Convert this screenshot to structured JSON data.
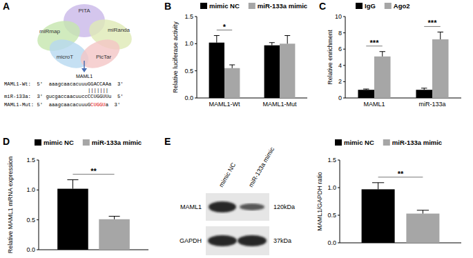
{
  "panel_labels": [
    "A",
    "B",
    "C",
    "D",
    "E"
  ],
  "diagram": {
    "databases": [
      "PITA",
      "miRmap",
      "miRanda",
      "microT",
      "PicTar"
    ],
    "target": "MAML1",
    "alignment": [
      {
        "segments": [
          {
            "text": "MAML1-Wt:  5'  aaagcaacacuuuGGACCAAa  3'"
          }
        ]
      },
      {
        "segments": [
          {
            "text": "|||||||"
          }
        ]
      },
      {
        "segments": [
          {
            "text": "miR-133a:  3' gucgaccaacuuccCCUGGUUu  5'"
          }
        ]
      },
      {
        "segments": [
          {
            "text": "MAML1-Mut: 5'  aaagcaacacuuuG"
          },
          {
            "text": "CUGGU",
            "color": "#e00000"
          },
          {
            "text": "a  3'"
          }
        ]
      }
    ]
  },
  "blot": {
    "lanes": [
      "mimic NC",
      "miR-133a mimic"
    ],
    "rows": [
      {
        "name": "MAML1",
        "size": "120kDa"
      },
      {
        "name": "GAPDH",
        "size": "37kDa"
      }
    ]
  },
  "chart_data": [
    {
      "type": "bar",
      "ylabel": "Relative luciferase activity",
      "categories": [
        "MAML1-Wt",
        "MAML1-Mut"
      ],
      "series": [
        {
          "name": "mimic NC",
          "color": "#000000",
          "values": [
            1.02,
            0.97
          ],
          "errors": [
            0.13,
            0.05
          ]
        },
        {
          "name": "miR-133a mimic",
          "color": "#a6a6a6",
          "values": [
            0.55,
            1.0
          ],
          "errors": [
            0.06,
            0.15
          ]
        }
      ],
      "ylim": [
        0,
        1.5
      ],
      "yticks": [
        {
          "value": 0,
          "label": "0.0"
        },
        {
          "value": 0.5,
          "label": "0.5"
        },
        {
          "value": 1,
          "label": "1.0"
        },
        {
          "value": 1.5,
          "label": "1.5"
        }
      ],
      "annotations": [
        "*",
        null
      ]
    },
    {
      "type": "bar",
      "ylabel": "Relative enrichment",
      "categories": [
        "MAML1",
        "miR-133a"
      ],
      "series": [
        {
          "name": "IgG",
          "color": "#000000",
          "values": [
            1.0,
            1.0
          ],
          "errors": [
            0.1,
            0.2
          ]
        },
        {
          "name": "Ago2",
          "color": "#a6a6a6",
          "values": [
            5.1,
            7.2
          ],
          "errors": [
            0.6,
            0.9
          ]
        }
      ],
      "ylim": [
        0,
        10
      ],
      "yticks": [
        0,
        2,
        4,
        6,
        8,
        10
      ],
      "annotations": [
        "***",
        "***"
      ]
    },
    {
      "type": "bar",
      "ylabel": "Relative MAML1 mRNA expression",
      "categories": [
        null
      ],
      "tick_labels": "y",
      "series": [
        {
          "name": "mimic NC",
          "color": "#000000",
          "values": [
            1.02
          ],
          "errors": [
            0.15
          ]
        },
        {
          "name": "miR-133a mimic",
          "color": "#a6a6a6",
          "values": [
            0.51
          ],
          "errors": [
            0.05
          ]
        }
      ],
      "ylim": [
        0,
        1.5
      ],
      "yticks": [
        {
          "value": 0,
          "label": "0.0"
        },
        {
          "value": 0.5,
          "label": "0.5"
        },
        {
          "value": 1,
          "label": "1.0"
        },
        {
          "value": 1.5,
          "label": "1.5"
        }
      ],
      "annotations": [
        "**"
      ]
    },
    {
      "type": "bar",
      "ylabel": "MAML1/GAPDH ratio",
      "categories": [
        null
      ],
      "tick_labels": "y",
      "series": [
        {
          "name": "mimic NC",
          "color": "#000000",
          "values": [
            0.97
          ],
          "errors": [
            0.12
          ]
        },
        {
          "name": "miR-133a mimic",
          "color": "#a6a6a6",
          "values": [
            0.53
          ],
          "errors": [
            0.06
          ]
        }
      ],
      "ylim": [
        0,
        1.5
      ],
      "yticks": [
        {
          "value": 0,
          "label": "0.0"
        },
        {
          "value": 0.5,
          "label": "0.5"
        },
        {
          "value": 1,
          "label": "1.0"
        },
        {
          "value": 1.5,
          "label": "1.5"
        }
      ],
      "annotations": [
        "**"
      ]
    }
  ]
}
